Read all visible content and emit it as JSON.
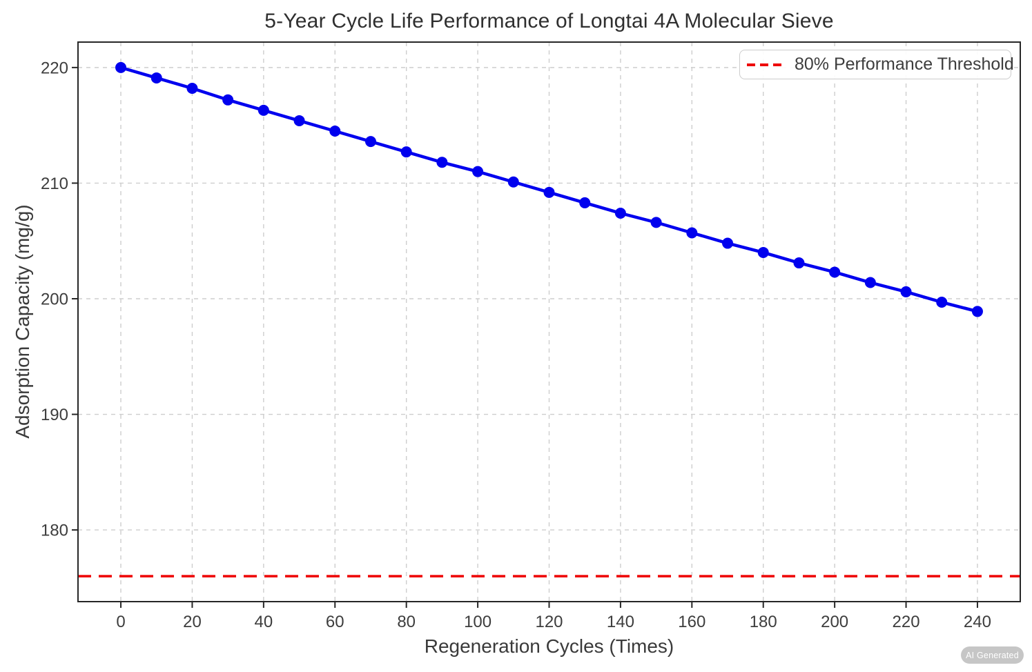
{
  "figure": {
    "title": "5-Year Cycle Life Performance of Longtai 4A Molecular Sieve",
    "badge_label": "AI Generated"
  },
  "chart_data": {
    "type": "line",
    "title": "5-Year Cycle Life Performance of Longtai 4A Molecular Sieve",
    "xlabel": "Regeneration Cycles (Times)",
    "ylabel": "Adsorption Capacity (mg/g)",
    "x": [
      0,
      10,
      20,
      30,
      40,
      50,
      60,
      70,
      80,
      90,
      100,
      110,
      120,
      130,
      140,
      150,
      160,
      170,
      180,
      190,
      200,
      210,
      220,
      230,
      240
    ],
    "series": [
      {
        "name": "Adsorption Capacity",
        "color": "#0000ee",
        "marker": "circle",
        "values": [
          220.0,
          219.1,
          218.2,
          217.2,
          216.3,
          215.4,
          214.5,
          213.6,
          212.7,
          211.8,
          211.0,
          210.1,
          209.2,
          208.3,
          207.4,
          206.6,
          205.7,
          204.8,
          204.0,
          203.1,
          202.3,
          201.4,
          200.6,
          199.7,
          198.9
        ]
      }
    ],
    "threshold": {
      "label": "80% Performance Threshold",
      "value": 176,
      "color": "#ee0000",
      "style": "dashed"
    },
    "xticks": [
      0,
      20,
      40,
      60,
      80,
      100,
      120,
      140,
      160,
      180,
      200,
      220,
      240
    ],
    "yticks": [
      180,
      190,
      200,
      210,
      220
    ],
    "xlim": [
      -12,
      252
    ],
    "ylim": [
      173.8,
      222.2
    ],
    "grid": true,
    "grid_color": "#cdcdcd",
    "spine_color": "#262626",
    "legend_position": "upper right"
  }
}
